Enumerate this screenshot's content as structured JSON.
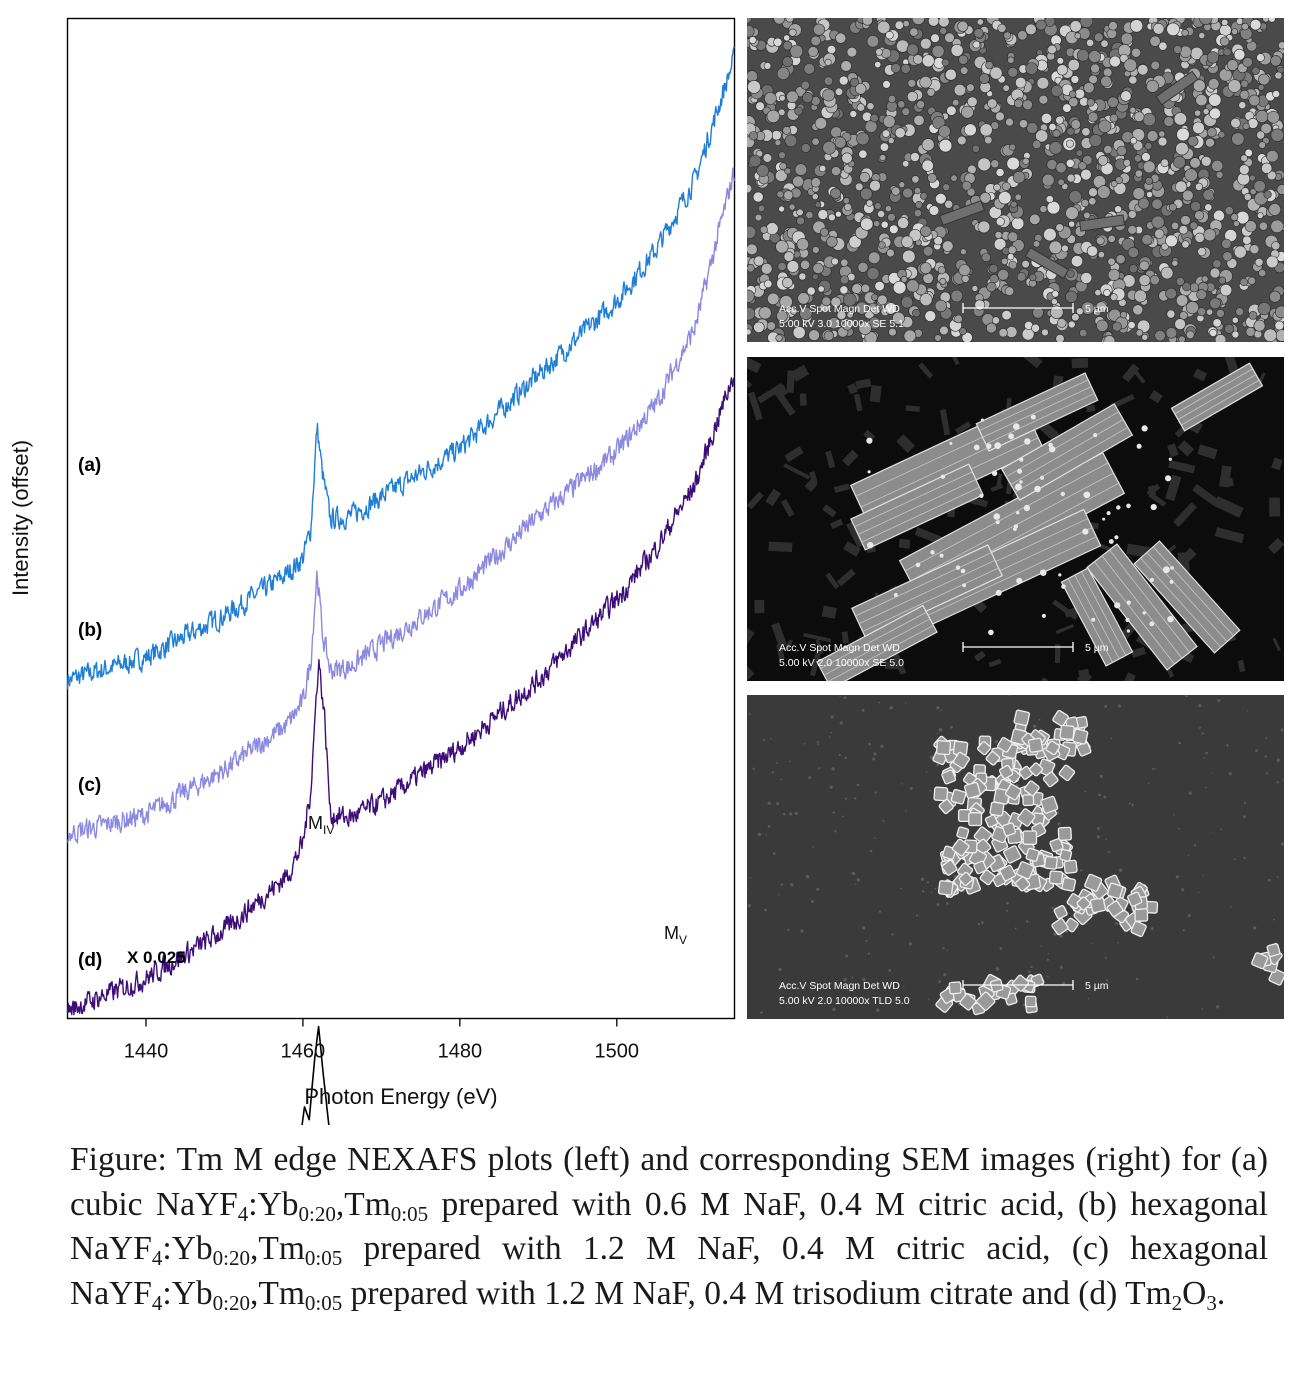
{
  "chart_data": {
    "type": "line",
    "xlabel": "Photon Energy (eV)",
    "ylabel": "Intensity (offset)",
    "xlim": [
      1430,
      1515
    ],
    "xticks": [
      1440,
      1460,
      1480,
      1500
    ],
    "yticks": [],
    "grid": false,
    "legend": "none",
    "series": [
      {
        "name": "(a)",
        "color": "#1f7fd6",
        "points": [
          [
            1430,
            0.48
          ],
          [
            1440,
            0.55
          ],
          [
            1450,
            0.68
          ],
          [
            1458,
            0.81
          ],
          [
            1460,
            0.86
          ],
          [
            1461,
            0.95
          ],
          [
            1461.8,
            1.27
          ],
          [
            1462.5,
            1.12
          ],
          [
            1463.5,
            0.98
          ],
          [
            1466,
            0.99
          ],
          [
            1470,
            1.05
          ],
          [
            1480,
            1.2
          ],
          [
            1490,
            1.43
          ],
          [
            1500,
            1.66
          ],
          [
            1505,
            1.82
          ],
          [
            1510,
            2.04
          ],
          [
            1515,
            2.42
          ]
        ]
      },
      {
        "name": "(b)",
        "color": "#8c8ae0",
        "points": [
          [
            1430,
            0.0
          ],
          [
            1440,
            0.06
          ],
          [
            1450,
            0.2
          ],
          [
            1458,
            0.34
          ],
          [
            1460,
            0.41
          ],
          [
            1461,
            0.54
          ],
          [
            1461.8,
            0.82
          ],
          [
            1462.5,
            0.62
          ],
          [
            1463.5,
            0.51
          ],
          [
            1466,
            0.52
          ],
          [
            1470,
            0.59
          ],
          [
            1480,
            0.76
          ],
          [
            1490,
            0.99
          ],
          [
            1500,
            1.19
          ],
          [
            1505,
            1.34
          ],
          [
            1510,
            1.58
          ],
          [
            1515,
            2.07
          ]
        ]
      },
      {
        "name": "(c)",
        "color": "#3d0e78",
        "points": [
          [
            1430,
            -0.55
          ],
          [
            1440,
            -0.45
          ],
          [
            1450,
            -0.3
          ],
          [
            1458,
            -0.13
          ],
          [
            1460,
            -0.03
          ],
          [
            1461,
            0.14
          ],
          [
            1462,
            0.55
          ],
          [
            1462.8,
            0.35
          ],
          [
            1463.5,
            0.06
          ],
          [
            1466,
            0.05
          ],
          [
            1470,
            0.1
          ],
          [
            1480,
            0.27
          ],
          [
            1490,
            0.48
          ],
          [
            1500,
            0.73
          ],
          [
            1505,
            0.89
          ],
          [
            1510,
            1.09
          ],
          [
            1515,
            1.44
          ]
        ]
      },
      {
        "name": "(d) X 0.025",
        "color": "#000000",
        "points": [
          [
            1430,
            -1.04
          ],
          [
            1450,
            -1.035
          ],
          [
            1458,
            -1.025
          ],
          [
            1459.5,
            -0.98
          ],
          [
            1460.2,
            -0.85
          ],
          [
            1460.8,
            -0.89
          ],
          [
            1461.5,
            -0.7
          ],
          [
            1462,
            -0.6
          ],
          [
            1462.6,
            -0.75
          ],
          [
            1463.5,
            -0.95
          ],
          [
            1465,
            -0.93
          ],
          [
            1466,
            -1.0
          ],
          [
            1470,
            -1.015
          ],
          [
            1480,
            -1.01
          ],
          [
            1490,
            -1.005
          ],
          [
            1500,
            -0.99
          ],
          [
            1505,
            -0.985
          ],
          [
            1507.5,
            -0.97
          ],
          [
            1509,
            -0.99
          ],
          [
            1515,
            -0.985
          ]
        ]
      }
    ],
    "annotations": {
      "curve_labels": [
        "(a)",
        "(b)",
        "(c)",
        "(d)"
      ],
      "scale_note": "X 0.025",
      "peak_miv": {
        "base": "M",
        "sub": "IV"
      },
      "peak_mv": {
        "base": "M",
        "sub": "V"
      }
    }
  },
  "sem_images": [
    {
      "id": "a",
      "style": "particles",
      "scale_bar": "5 µm",
      "info_header": "Acc.V  Spot Magn    Det  WD",
      "info_values": "5.00 kV 3.0   10000x   SE   5.1"
    },
    {
      "id": "b",
      "style": "rods",
      "scale_bar": "5 µm",
      "info_header": "Acc.V  Spot Magn    Det  WD",
      "info_values": "5.00 kV 2.0   10000x   SE   5.0"
    },
    {
      "id": "c",
      "style": "cubes",
      "scale_bar": "5 µm",
      "info_header": "Acc.V  Spot Magn    Det  WD",
      "info_values": "5.00 kV 2.0   10000x  TLD 5.0"
    }
  ],
  "caption": {
    "p1": "Figure: Tm M edge NEXAFS plots (left) and corresponding SEM images (right) for (a) cubic NaYF",
    "s1": "4",
    "p2": ":Yb",
    "s2": "0:20",
    "p3": ",Tm",
    "s3": "0:05",
    "p4": " prepared with 0.6 M NaF, 0.4 M citric acid, (b) hexagonal NaYF",
    "s4": "4",
    "p5": ":Yb",
    "s5": "0:20",
    "p6": ",Tm",
    "s6": "0:05",
    "p7": " prepared with 1.2 M NaF, 0.4 M citric acid, (c) hexagonal NaYF",
    "s7": "4",
    "p8": ":Yb",
    "s8": "0:20",
    "p9": ",Tm",
    "s9": "0:05",
    "p10": " prepared with 1.2 M NaF, 0.4 M trisodium citrate and (d) Tm",
    "s10": "2",
    "p11": "O",
    "s11": "3",
    "p12": "."
  }
}
